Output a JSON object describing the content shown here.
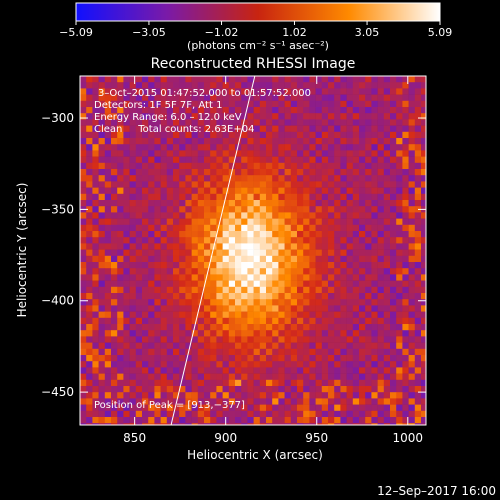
{
  "chart_data": {
    "type": "heatmap",
    "title": "Reconstructed RHESSI Image",
    "xlabel": "Heliocentric X (arcsec)",
    "ylabel": "Heliocentric Y (arcsec)",
    "xlim": [
      820,
      1010
    ],
    "ylim": [
      -468,
      -277
    ],
    "x_ticks": [
      850,
      900,
      950,
      1000
    ],
    "y_ticks": [
      -300,
      -350,
      -400,
      -450
    ],
    "x_tick_labels": [
      "850",
      "900",
      "950",
      "1000"
    ],
    "y_tick_labels": [
      "−300",
      "−350",
      "−400",
      "−450"
    ],
    "colorbar": {
      "range": [
        -5.09,
        5.09
      ],
      "ticks": [
        -5.09,
        -3.05,
        -1.02,
        1.02,
        3.05,
        5.09
      ],
      "tick_labels": [
        "−5.09",
        "−3.05",
        "−1.02",
        "1.02",
        "3.05",
        "5.09"
      ],
      "unit_label": "(photons cm⁻² s⁻¹ asec⁻²)"
    },
    "annotations": [
      "3–Oct–2015 01:47:52.000 to 01:57:52.000",
      "Detectors: 1F 5F 7F, Att 1",
      "Energy Range: 6.0 – 12.0 keV",
      "Clean     Total counts: 2.63E+04"
    ],
    "peak": {
      "x": 913,
      "y": -377,
      "label": "Position of Peak = [913,−377]"
    },
    "limb_line": [
      [
        870,
        -468
      ],
      [
        916,
        -277
      ]
    ],
    "colormap": [
      "#1010ff",
      "#7a1aa8",
      "#d52a18",
      "#ff8a00",
      "#ffffff"
    ]
  },
  "footer": {
    "timestamp": "12–Sep–2017 16:00"
  }
}
